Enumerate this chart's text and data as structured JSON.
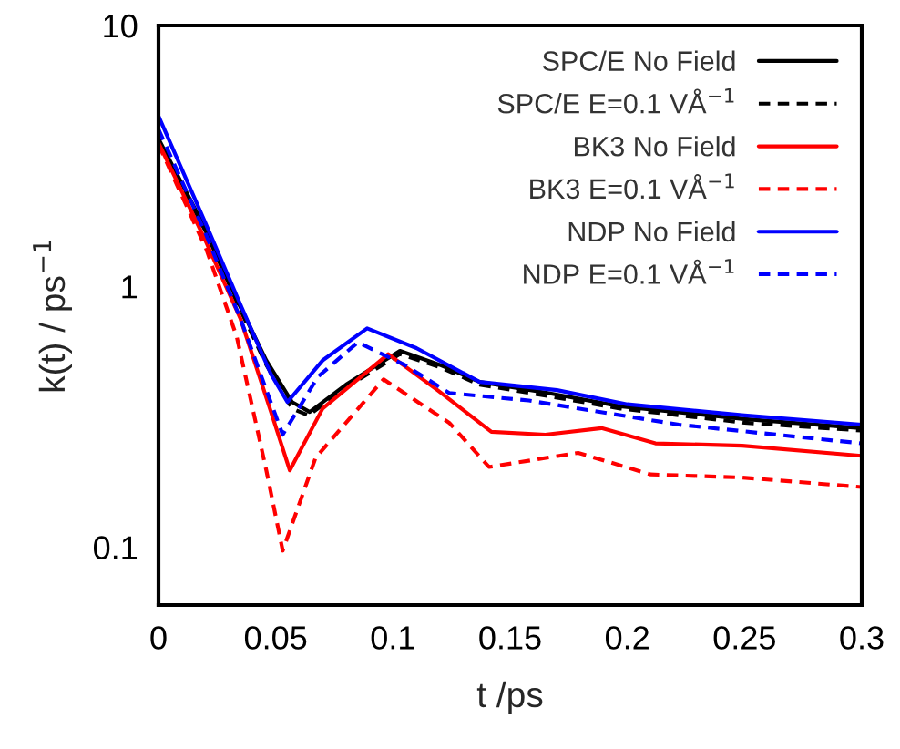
{
  "chart_data": {
    "type": "line",
    "xlabel": "t /ps",
    "ylabel": "k(t) / ps$^{−1}$",
    "log": "y",
    "legend": "top right",
    "grid": false,
    "xlim": [
      0,
      0.3
    ],
    "xticks": [
      0,
      0.05,
      0.1,
      0.15,
      0.2,
      0.25,
      0.3
    ],
    "ylim": [
      0.06,
      10
    ],
    "yticks": [
      0.1,
      1,
      10
    ],
    "series": [
      {
        "name": "SPC/E No Field",
        "color": "#000000",
        "line_style": "solid",
        "x": [
          0,
          0.0205,
          0.0334,
          0.046,
          0.057,
          0.0645,
          0.08,
          0.103,
          0.12,
          0.137,
          0.166,
          0.197,
          0.25,
          0.3
        ],
        "values": [
          3.68,
          1.63,
          0.89,
          0.52,
          0.36,
          0.33,
          0.42,
          0.566,
          0.5,
          0.43,
          0.39,
          0.347,
          0.31,
          0.286
        ]
      },
      {
        "name": "SPC/E E=0.1 VÅ$^{−1}$",
        "color": "#000000",
        "line_style": "dashed",
        "x": [
          0,
          0.0205,
          0.0334,
          0.046,
          0.057,
          0.064,
          0.08,
          0.103,
          0.12,
          0.137,
          0.166,
          0.197,
          0.25,
          0.3
        ],
        "values": [
          3.6,
          1.6,
          0.87,
          0.5,
          0.34,
          0.32,
          0.41,
          0.55,
          0.49,
          0.42,
          0.38,
          0.34,
          0.3,
          0.28
        ]
      },
      {
        "name": "BK3 No Field",
        "color": "#ff0000",
        "line_style": "solid",
        "x": [
          0,
          0.02,
          0.035,
          0.048,
          0.056,
          0.07,
          0.098,
          0.119,
          0.142,
          0.165,
          0.189,
          0.212,
          0.249,
          0.3
        ],
        "values": [
          3.55,
          1.5,
          0.75,
          0.33,
          0.197,
          0.34,
          0.55,
          0.4,
          0.277,
          0.27,
          0.286,
          0.25,
          0.245,
          0.224
        ]
      },
      {
        "name": "BK3 E=0.1 VÅ$^{−1}$",
        "color": "#ff0000",
        "line_style": "dashed",
        "x": [
          0,
          0.0205,
          0.0334,
          0.046,
          0.053,
          0.067,
          0.096,
          0.124,
          0.141,
          0.179,
          0.21,
          0.249,
          0.3
        ],
        "values": [
          3.5,
          1.38,
          0.64,
          0.197,
          0.097,
          0.22,
          0.44,
          0.3,
          0.203,
          0.23,
          0.19,
          0.185,
          0.17
        ]
      },
      {
        "name": "NDP No Field",
        "color": "#0000ff",
        "line_style": "solid",
        "x": [
          0,
          0.02,
          0.035,
          0.048,
          0.055,
          0.07,
          0.089,
          0.11,
          0.137,
          0.17,
          0.2,
          0.25,
          0.3
        ],
        "values": [
          4.5,
          1.75,
          0.85,
          0.46,
          0.36,
          0.52,
          0.69,
          0.58,
          0.43,
          0.4,
          0.353,
          0.32,
          0.295
        ]
      },
      {
        "name": "NDP E=0.1 VÅ$^{−1}$",
        "color": "#0000ff",
        "line_style": "dashed",
        "x": [
          0,
          0.02,
          0.035,
          0.046,
          0.053,
          0.068,
          0.085,
          0.105,
          0.124,
          0.158,
          0.222,
          0.3
        ],
        "values": [
          4.0,
          1.6,
          0.75,
          0.4,
          0.27,
          0.45,
          0.61,
          0.5,
          0.39,
          0.365,
          0.295,
          0.25
        ]
      }
    ]
  }
}
